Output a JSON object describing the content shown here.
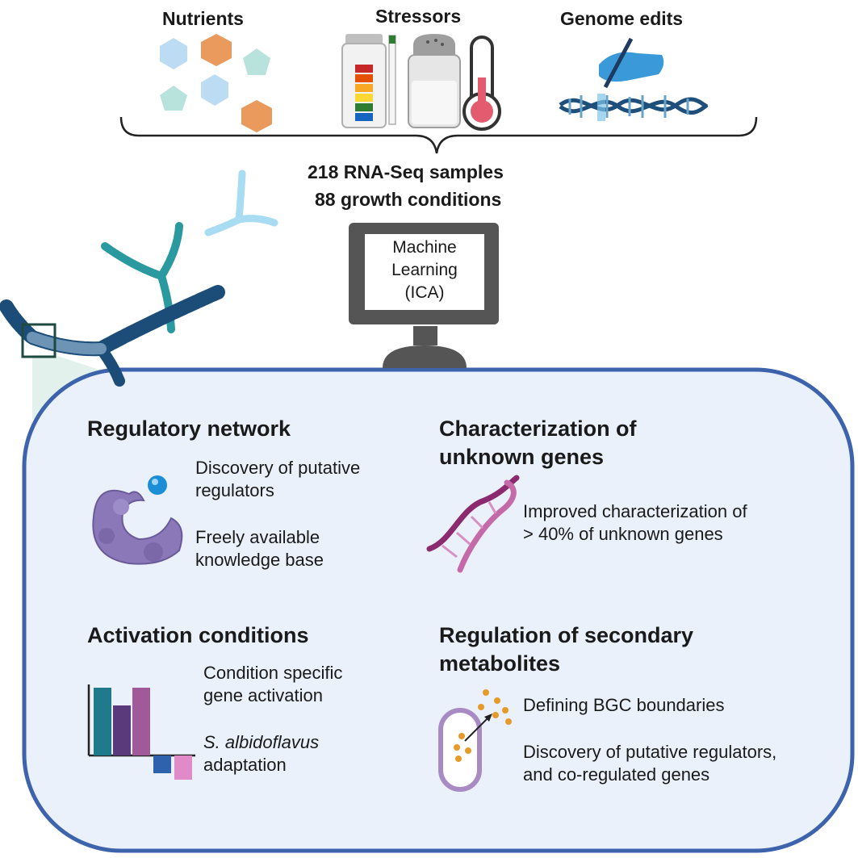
{
  "inputs": {
    "nutrients": "Nutrients",
    "stressors": "Stressors",
    "genome_edits": "Genome edits"
  },
  "summary": {
    "samples": "218 RNA-Seq samples",
    "conditions": "88 growth conditions"
  },
  "monitor": {
    "line1": "Machine",
    "line2": "Learning",
    "line3": "(ICA)"
  },
  "sections": {
    "regulatory": {
      "title": "Regulatory network",
      "point1_line1": "Discovery of putative",
      "point1_line2": "regulators",
      "point2_line1": "Freely available",
      "point2_line2": "knowledge base"
    },
    "characterization": {
      "title_line1": "Characterization of",
      "title_line2": "unknown genes",
      "point1_line1": "Improved characterization of",
      "point1_line2": "> 40% of unknown genes"
    },
    "activation": {
      "title": "Activation conditions",
      "point1_line1": "Condition specific",
      "point1_line2": "gene activation",
      "point2_line1": "S. albidoflavus",
      "point2_line2": "adaptation"
    },
    "secondary": {
      "title_line1": "Regulation of secondary",
      "title_line2": "metabolites",
      "point1": "Defining BGC boundaries",
      "point2_line1": "Discovery of putative regulators,",
      "point2_line2": "and co-regulated genes"
    }
  },
  "colors": {
    "panel_fill": "#eaf1fb",
    "panel_border": "#3d63ad",
    "hex_blue": "#bcdcf3",
    "hex_orange": "#e99a5c",
    "pent_teal": "#b7e3dc",
    "monitor_dark": "#555555",
    "dna_purple": "#8b2a6e",
    "protein_purple": "#8a78b8",
    "bar_teal": "#1f7a8c",
    "bar_purple": "#5a3a7a",
    "bar_mauve": "#a05a9a",
    "bar_blue": "#2f62ad",
    "bar_pink": "#e08ac8"
  }
}
